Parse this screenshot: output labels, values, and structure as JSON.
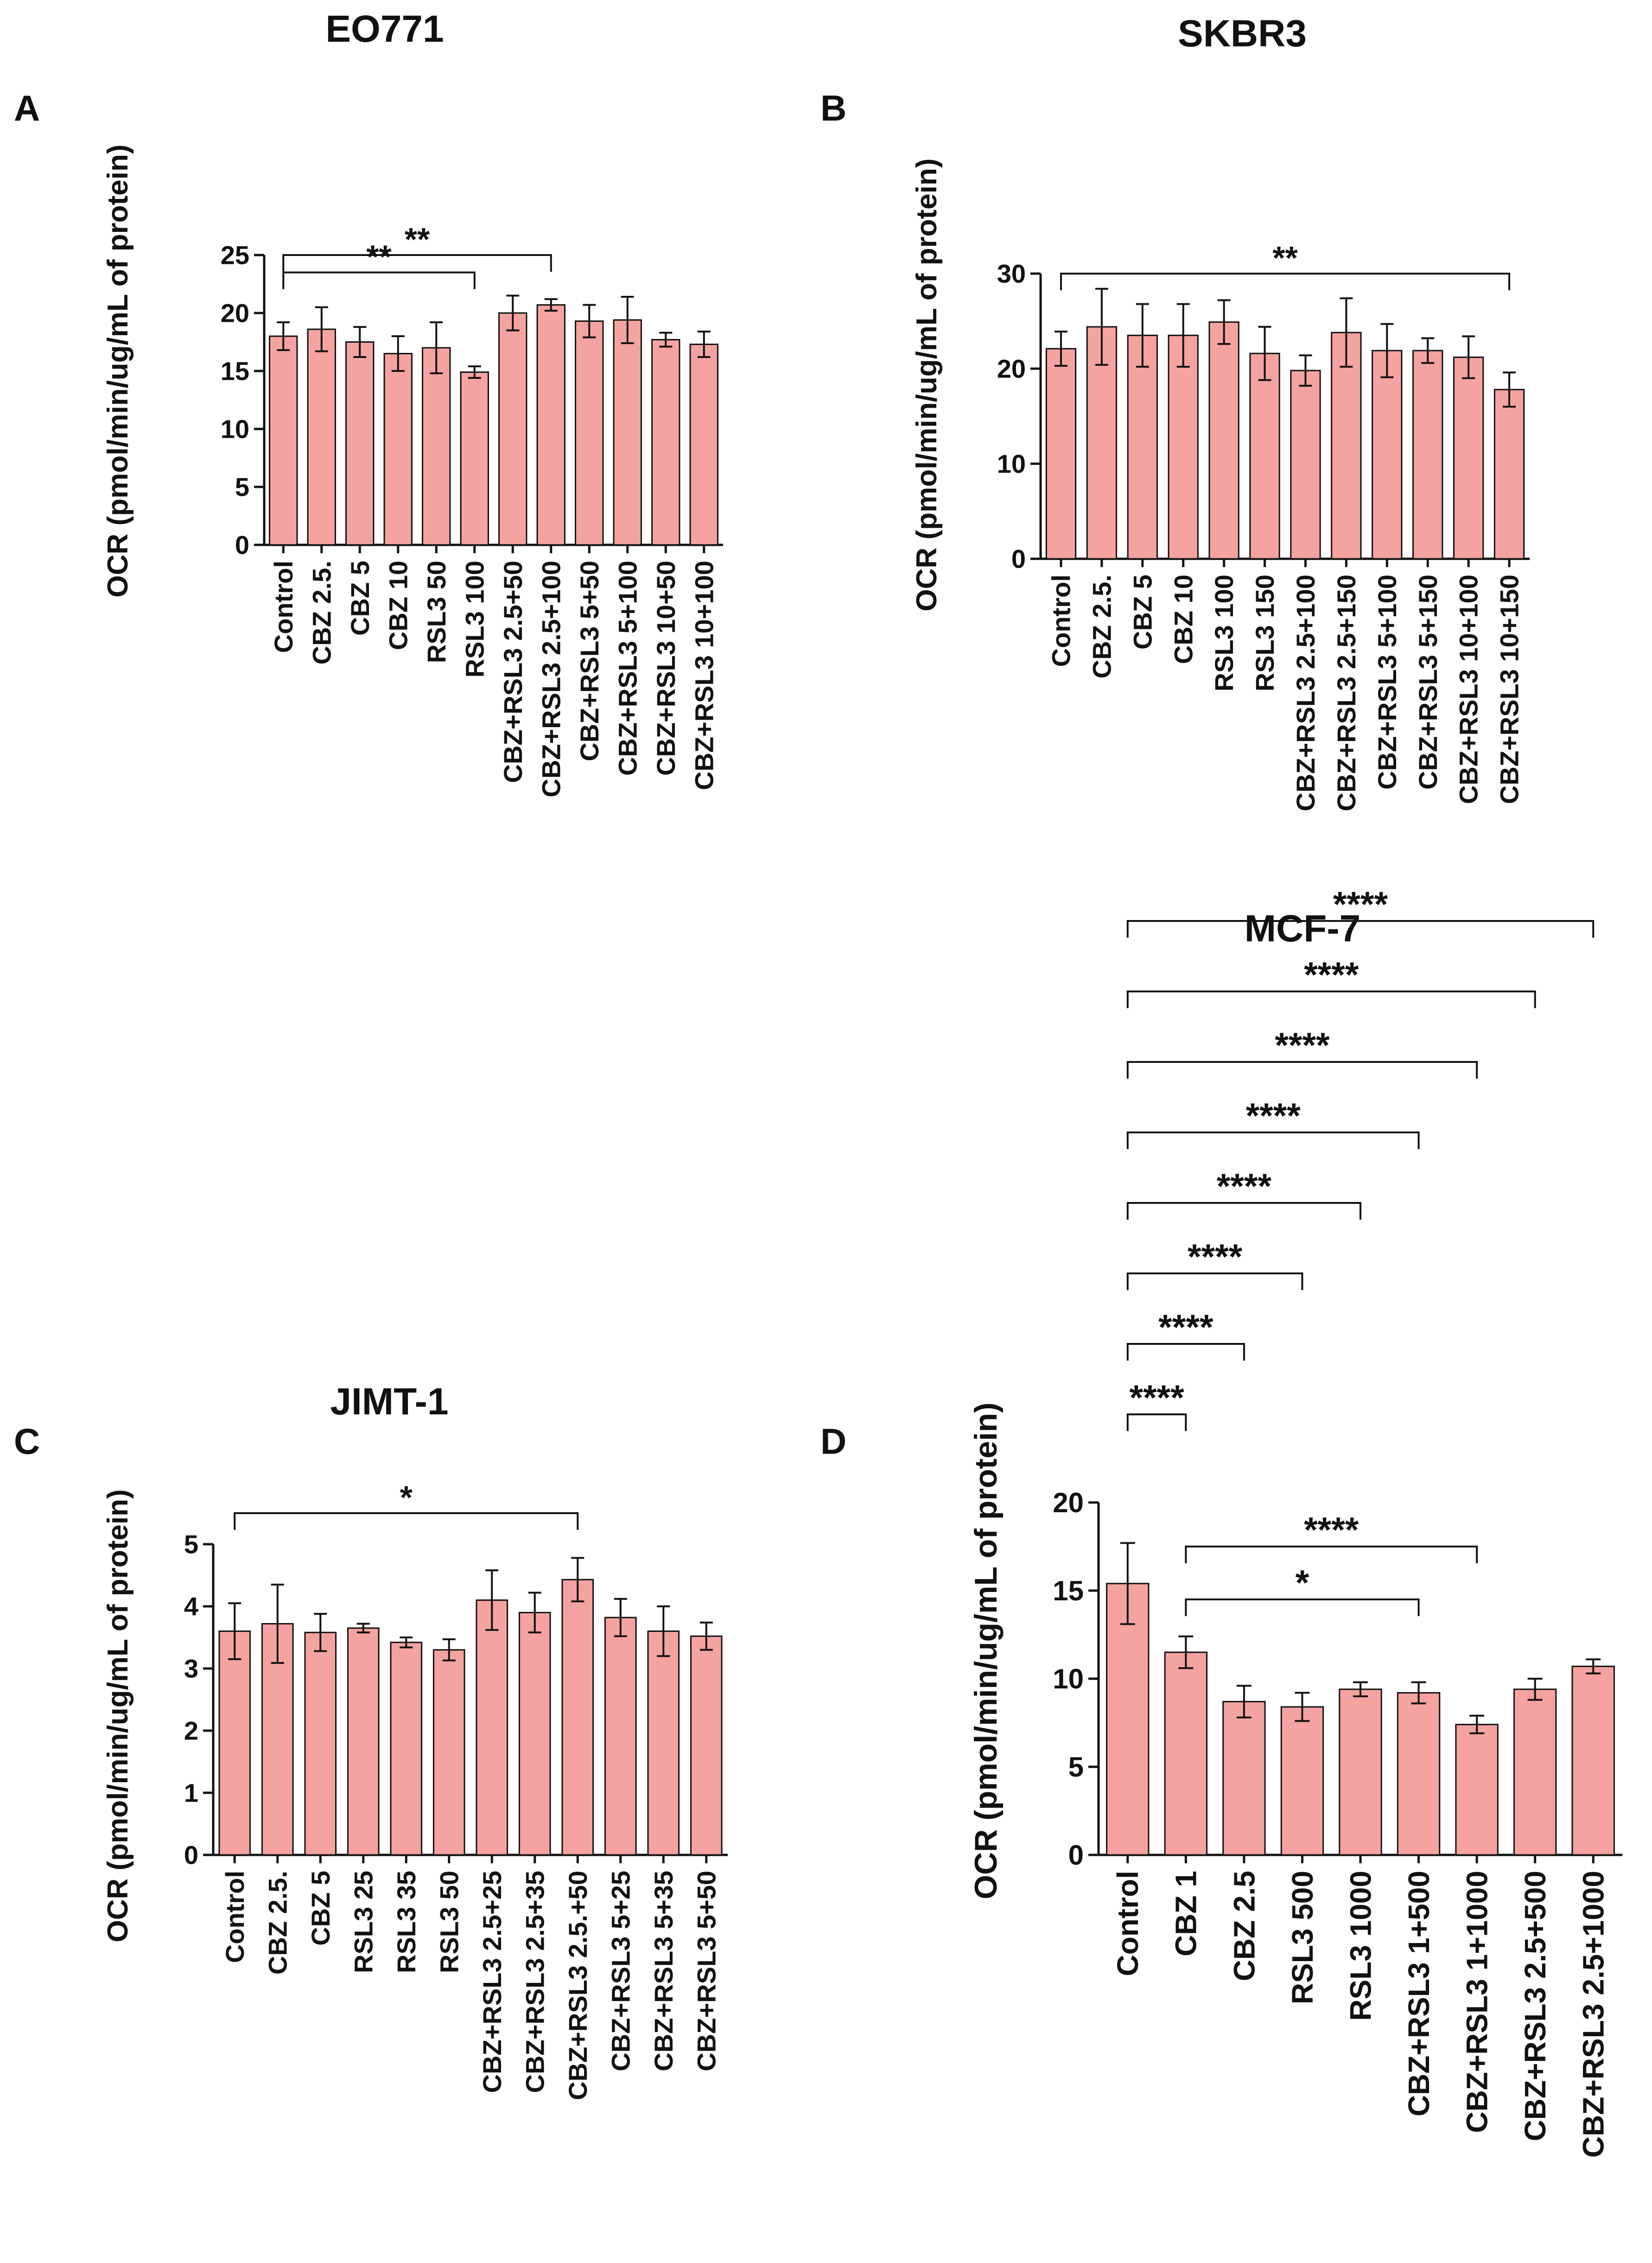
{
  "figure": {
    "bar_color": "#f5a3a0",
    "bar_stroke": "#111111"
  },
  "chart_data": [
    {
      "panel": "A",
      "type": "bar",
      "title": "EO771",
      "ylabel": "OCR (pmol/min/ug/mL of protein)",
      "ylim": [
        0,
        25
      ],
      "yticks": [
        0,
        5,
        10,
        15,
        20,
        25
      ],
      "categories": [
        "Control",
        "CBZ 2.5.",
        "CBZ 5",
        "CBZ 10",
        "RSL3 50",
        "RSL3 100",
        "CBZ+RSL3 2.5+50",
        "CBZ+RSL3 2.5+100",
        "CBZ+RSL3 5+50",
        "CBZ+RSL3 5+100",
        "CBZ+RSL3 10+50",
        "CBZ+RSL3 10+100"
      ],
      "values": [
        18.0,
        18.6,
        17.5,
        16.5,
        17.0,
        14.9,
        20.0,
        20.7,
        19.3,
        19.4,
        17.7,
        17.3
      ],
      "errors": [
        1.2,
        1.9,
        1.3,
        1.5,
        2.2,
        0.5,
        1.5,
        0.5,
        1.4,
        2.0,
        0.6,
        1.1
      ],
      "significance": [
        {
          "from": 0,
          "to": 7,
          "label": "**",
          "y": 25
        },
        {
          "from": 0,
          "to": 5,
          "label": "**",
          "y": 23.5
        }
      ]
    },
    {
      "panel": "B",
      "type": "bar",
      "title": "SKBR3",
      "ylabel": "OCR (pmol/min/ug/mL of protein)",
      "ylim": [
        0,
        30
      ],
      "yticks": [
        0,
        10,
        20,
        30
      ],
      "categories": [
        "Control",
        "CBZ 2.5.",
        "CBZ 5",
        "CBZ 10",
        "RSL3 100",
        "RSL3 150",
        "CBZ+RSL3 2.5+100",
        "CBZ+RSL3 2.5+150",
        "CBZ+RSL3 5+100",
        "CBZ+RSL3 5+150",
        "CBZ+RSL3 10+100",
        "CBZ+RSL3 10+150"
      ],
      "values": [
        22.1,
        24.4,
        23.5,
        23.5,
        24.9,
        21.6,
        19.8,
        23.8,
        21.9,
        21.9,
        21.2,
        17.8
      ],
      "errors": [
        1.8,
        4.0,
        3.3,
        3.3,
        2.3,
        2.8,
        1.6,
        3.6,
        2.8,
        1.3,
        2.2,
        1.8
      ],
      "significance": [
        {
          "from": 0,
          "to": 11,
          "label": "**",
          "y": 30
        }
      ]
    },
    {
      "panel": "C",
      "type": "bar",
      "title": "JIMT-1",
      "ylabel": "OCR (pmol/min/ug/mL of protein)",
      "ylim": [
        0,
        5
      ],
      "yticks": [
        0,
        1,
        2,
        3,
        4,
        5
      ],
      "categories": [
        "Control",
        "CBZ 2.5.",
        "CBZ 5",
        "RSL3 25",
        "RSL3 35",
        "RSL3 50",
        "CBZ+RSL3 2.5+25",
        "CBZ+RSL3 2.5+35",
        "CBZ+RSL3 2.5.+50",
        "CBZ+RSL3 5+25",
        "CBZ+RSL3 5+35",
        "CBZ+RSL3 5+50"
      ],
      "values": [
        3.6,
        3.72,
        3.58,
        3.65,
        3.42,
        3.3,
        4.1,
        3.9,
        4.43,
        3.82,
        3.6,
        3.52
      ],
      "errors": [
        0.45,
        0.63,
        0.3,
        0.07,
        0.08,
        0.17,
        0.48,
        0.32,
        0.35,
        0.3,
        0.4,
        0.22
      ],
      "significance": [
        {
          "from": 0,
          "to": 8,
          "label": "*",
          "y": 5.5
        }
      ]
    },
    {
      "panel": "D",
      "type": "bar",
      "title": "MCF-7",
      "ylabel": "OCR (pmol/min/ug/mL of protein)",
      "ylim": [
        0,
        20
      ],
      "yticks": [
        0,
        5,
        10,
        15,
        20
      ],
      "categories": [
        "Control",
        "CBZ 1",
        "CBZ 2.5",
        "RSL3 500",
        "RSL3 1000",
        "CBZ+RSL3 1+500",
        "CBZ+RSL3 1+1000",
        "CBZ+RSL3 2.5+500",
        "CBZ+RSL3 2.5+1000"
      ],
      "values": [
        15.4,
        11.5,
        8.7,
        8.4,
        9.4,
        9.2,
        7.4,
        9.4,
        10.7
      ],
      "errors": [
        2.3,
        0.9,
        0.9,
        0.8,
        0.4,
        0.6,
        0.5,
        0.6,
        0.4
      ],
      "significance": [
        {
          "from": 0,
          "to": 8,
          "label": "****",
          "y": 53
        },
        {
          "from": 0,
          "to": 7,
          "label": "****",
          "y": 49
        },
        {
          "from": 0,
          "to": 6,
          "label": "****",
          "y": 45
        },
        {
          "from": 0,
          "to": 5,
          "label": "****",
          "y": 41
        },
        {
          "from": 0,
          "to": 4,
          "label": "****",
          "y": 37
        },
        {
          "from": 0,
          "to": 3,
          "label": "****",
          "y": 33
        },
        {
          "from": 0,
          "to": 2,
          "label": "****",
          "y": 29
        },
        {
          "from": 0,
          "to": 1,
          "label": "****",
          "y": 25
        },
        {
          "from": 1,
          "to": 6,
          "label": "****",
          "y": 17.5
        },
        {
          "from": 1,
          "to": 5,
          "label": "*",
          "y": 14.5
        }
      ]
    }
  ]
}
